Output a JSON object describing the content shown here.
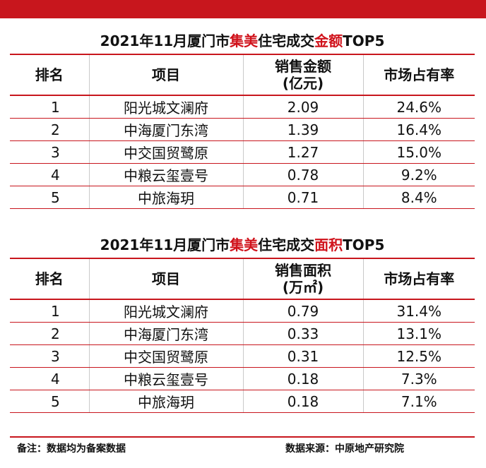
{
  "table1": {
    "title_pre": "2021年11月厦门市",
    "title_red1": "集美",
    "title_mid": "住宅成交",
    "title_red2": "金额",
    "title_post": "TOP5",
    "headers": [
      "排名",
      "项目",
      "销售金额",
      "(亿元)",
      "市场占有率"
    ],
    "rows": [
      {
        "rank": "1",
        "project": "阳光城文澜府",
        "value": "2.09",
        "share": "24.6%"
      },
      {
        "rank": "2",
        "project": "中海厦门东湾",
        "value": "1.39",
        "share": "16.4%"
      },
      {
        "rank": "3",
        "project": "中交国贸鹭原",
        "value": "1.27",
        "share": "15.0%"
      },
      {
        "rank": "4",
        "project": "中粮云玺壹号",
        "value": "0.78",
        "share": "9.2%"
      },
      {
        "rank": "5",
        "project": "中旅海玥",
        "value": "0.71",
        "share": "8.4%"
      }
    ]
  },
  "table2": {
    "title_pre": "2021年11月厦门市",
    "title_red1": "集美",
    "title_mid": "住宅成交",
    "title_red2": "面积",
    "title_post": "TOP5",
    "headers": [
      "排名",
      "项目",
      "销售面积",
      "(万㎡)",
      "市场占有率"
    ],
    "rows": [
      {
        "rank": "1",
        "project": "阳光城文澜府",
        "value": "0.79",
        "share": "31.4%"
      },
      {
        "rank": "2",
        "project": "中海厦门东湾",
        "value": "0.33",
        "share": "13.1%"
      },
      {
        "rank": "3",
        "project": "中交国贸鹭原",
        "value": "0.31",
        "share": "12.5%"
      },
      {
        "rank": "4",
        "project": "中粮云玺壹号",
        "value": "0.18",
        "share": "7.3%"
      },
      {
        "rank": "5",
        "project": "中旅海玥",
        "value": "0.18",
        "share": "7.1%"
      }
    ]
  },
  "footer": {
    "note": "备注：数据均为备案数据",
    "source": "数据来源：中原地产研究院"
  },
  "colors": {
    "accent": "#c8161d",
    "highlight": "#d0121b"
  }
}
